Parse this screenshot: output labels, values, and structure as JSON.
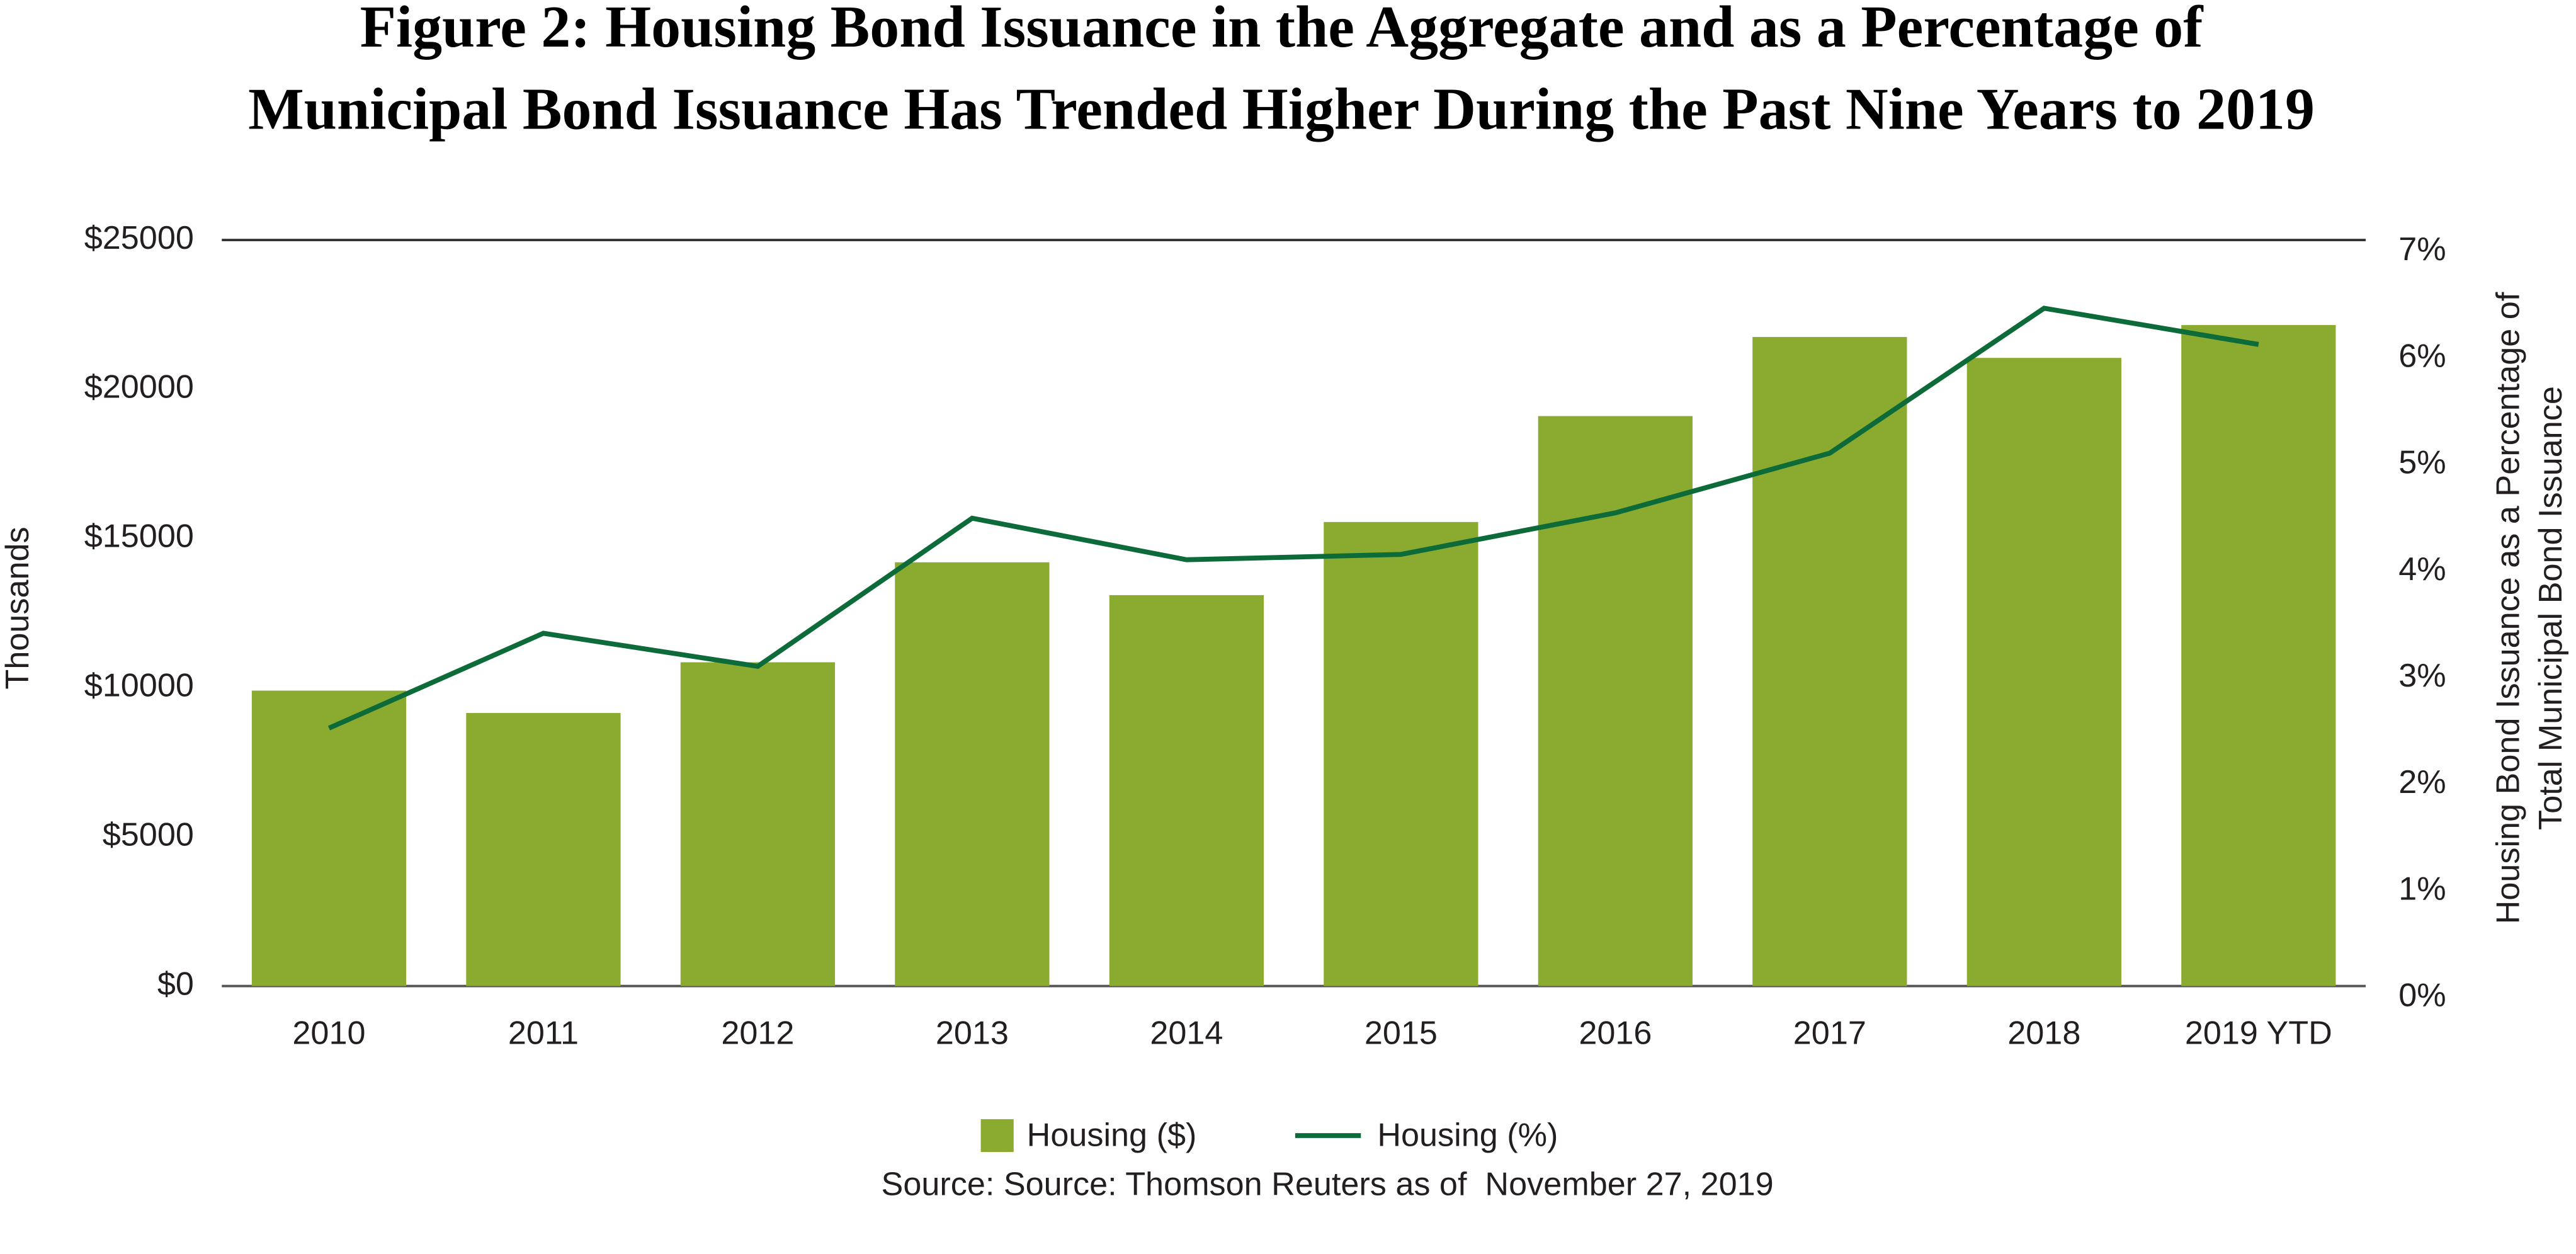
{
  "chart_data": {
    "type": "bar_line",
    "title": [
      "Figure 2: Housing Bond Issuance in the Aggregate and as a Percentage of",
      "Municipal Bond Issuance Has Trended Higher During the Past Nine Years to 2019"
    ],
    "ylabel": "Thousands",
    "y2label": [
      "Housing Bond Issuance as a Percentage of",
      "Total Municipal Bond Issuance"
    ],
    "source": "Source: Source: Thomson Reuters as of  November 27, 2019",
    "categories": [
      "2010",
      "2011",
      "2012",
      "2013",
      "2014",
      "2015",
      "2016",
      "2017",
      "2018",
      "2019 YTD"
    ],
    "series": [
      {
        "name": "Housing ($)",
        "type": "bar",
        "color": "#8aab30",
        "values": [
          9900,
          9150,
          10850,
          14200,
          13100,
          15550,
          19100,
          21750,
          21050,
          22150
        ]
      },
      {
        "name": "Housing (%)",
        "type": "line",
        "axis": "y2",
        "color": "#0d6b3a",
        "values": [
          2.42,
          3.31,
          3.0,
          4.39,
          4.0,
          4.05,
          4.44,
          5.0,
          6.36,
          6.02
        ]
      }
    ],
    "ylim": [
      0,
      25000
    ],
    "yticks": [
      {
        "value": 0,
        "label": "$0"
      },
      {
        "value": 5000,
        "label": "$5000"
      },
      {
        "value": 10000,
        "label": "$10000"
      },
      {
        "value": 15000,
        "label": "$15000"
      },
      {
        "value": 20000,
        "label": "$20000"
      },
      {
        "value": 25000,
        "label": "$25000"
      }
    ],
    "y2lim": [
      0,
      7
    ],
    "y2ticks": [
      {
        "value": 0,
        "label": "0%"
      },
      {
        "value": 1,
        "label": "1%"
      },
      {
        "value": 2,
        "label": "2%"
      },
      {
        "value": 3,
        "label": "3%"
      },
      {
        "value": 4,
        "label": "4%"
      },
      {
        "value": 5,
        "label": "5%"
      },
      {
        "value": 6,
        "label": "6%"
      },
      {
        "value": 7,
        "label": "7%"
      }
    ],
    "grid": false,
    "legend": "bottom"
  }
}
